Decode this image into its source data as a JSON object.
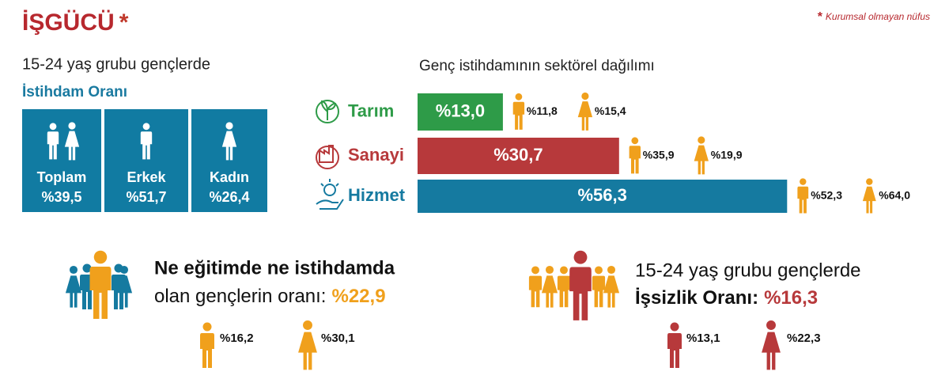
{
  "header": {
    "title": "İŞGÜCÜ",
    "asterisk": "*",
    "note_mark": "*",
    "note": "Kurumsal olmayan nüfus"
  },
  "employment": {
    "subtitle": "15-24 yaş grubu gençlerde",
    "title": "İstihdam Oranı",
    "groups": [
      {
        "label": "Toplam",
        "value": "%39,5"
      },
      {
        "label": "Erkek",
        "value": "%51,7"
      },
      {
        "label": "Kadın",
        "value": "%26,4"
      }
    ]
  },
  "chart_data": {
    "type": "bar",
    "orientation": "horizontal",
    "title": "Genç istihdamının sektörel dağılımı",
    "categories": [
      "Tarım",
      "Sanayi",
      "Hizmet"
    ],
    "values": [
      13.0,
      30.7,
      56.3
    ],
    "value_labels": [
      "%13,0",
      "%30,7",
      "%56,3"
    ],
    "colors": [
      "#2e9b48",
      "#b7393b",
      "#157aa0"
    ],
    "male_labels": [
      "%11,8",
      "%35,9",
      "%52,3"
    ],
    "female_labels": [
      "%15,4",
      "%19,9",
      "%64,0"
    ]
  },
  "neet": {
    "line1": "Ne eğitimde ne istihdamda",
    "line2": "olan gençlerin oranı:",
    "value": "%22,9",
    "male": "%16,2",
    "female": "%30,1"
  },
  "unemployment": {
    "line1": "15-24 yaş grubu gençlerde",
    "line2": "İşsizlik Oranı:",
    "value": "%16,3",
    "male": "%13,1",
    "female": "%22,3"
  }
}
